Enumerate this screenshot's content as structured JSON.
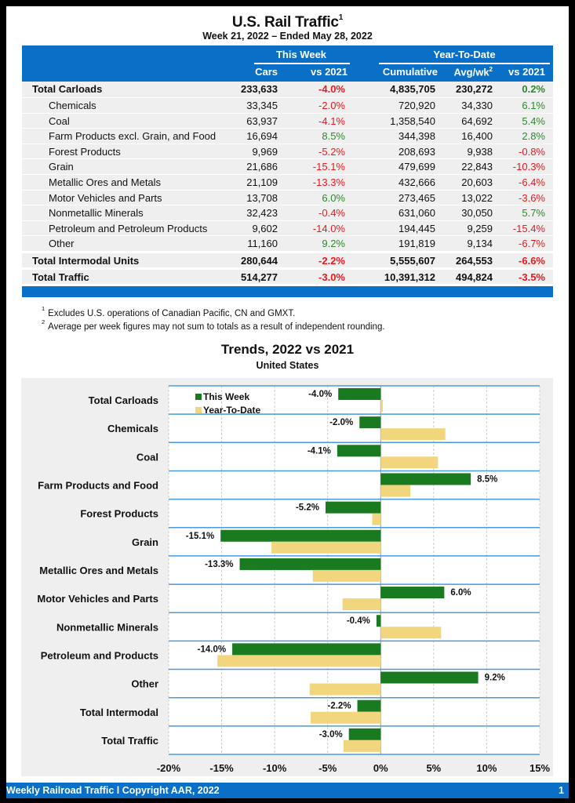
{
  "header": {
    "title": "U.S. Rail Traffic",
    "title_sup": "1",
    "subtitle": "Week 21, 2022 – Ended May 28, 2022"
  },
  "table": {
    "group_headers": [
      "This Week",
      "Year-To-Date"
    ],
    "columns": [
      "Cars",
      "vs 2021",
      "Cumulative",
      "Avg/wk",
      "vs 2021"
    ],
    "avg_sup": "2",
    "rows": [
      {
        "label": "Total Carloads",
        "type": "total",
        "cars": "233,633",
        "vs_week": "-4.0%",
        "cumulative": "4,835,705",
        "avg_wk": "230,272",
        "vs_ytd": "0.2%"
      },
      {
        "label": "Chemicals",
        "type": "sub",
        "cars": "33,345",
        "vs_week": "-2.0%",
        "cumulative": "720,920",
        "avg_wk": "34,330",
        "vs_ytd": "6.1%"
      },
      {
        "label": "Coal",
        "type": "sub",
        "cars": "63,937",
        "vs_week": "-4.1%",
        "cumulative": "1,358,540",
        "avg_wk": "64,692",
        "vs_ytd": "5.4%"
      },
      {
        "label": "Farm Products excl. Grain, and Food",
        "type": "sub",
        "cars": "16,694",
        "vs_week": "8.5%",
        "cumulative": "344,398",
        "avg_wk": "16,400",
        "vs_ytd": "2.8%"
      },
      {
        "label": "Forest Products",
        "type": "sub",
        "cars": "9,969",
        "vs_week": "-5.2%",
        "cumulative": "208,693",
        "avg_wk": "9,938",
        "vs_ytd": "-0.8%"
      },
      {
        "label": "Grain",
        "type": "sub",
        "cars": "21,686",
        "vs_week": "-15.1%",
        "cumulative": "479,699",
        "avg_wk": "22,843",
        "vs_ytd": "-10.3%"
      },
      {
        "label": "Metallic Ores and Metals",
        "type": "sub",
        "cars": "21,109",
        "vs_week": "-13.3%",
        "cumulative": "432,666",
        "avg_wk": "20,603",
        "vs_ytd": "-6.4%"
      },
      {
        "label": "Motor Vehicles and Parts",
        "type": "sub",
        "cars": "13,708",
        "vs_week": "6.0%",
        "cumulative": "273,465",
        "avg_wk": "13,022",
        "vs_ytd": "-3.6%"
      },
      {
        "label": "Nonmetallic Minerals",
        "type": "sub",
        "cars": "32,423",
        "vs_week": "-0.4%",
        "cumulative": "631,060",
        "avg_wk": "30,050",
        "vs_ytd": "5.7%"
      },
      {
        "label": "Petroleum and Petroleum Products",
        "type": "sub",
        "cars": "9,602",
        "vs_week": "-14.0%",
        "cumulative": "194,445",
        "avg_wk": "9,259",
        "vs_ytd": "-15.4%"
      },
      {
        "label": "Other",
        "type": "sub",
        "cars": "11,160",
        "vs_week": "9.2%",
        "cumulative": "191,819",
        "avg_wk": "9,134",
        "vs_ytd": "-6.7%"
      },
      {
        "label": "Total Intermodal Units",
        "type": "total",
        "cars": "280,644",
        "vs_week": "-2.2%",
        "cumulative": "5,555,607",
        "avg_wk": "264,553",
        "vs_ytd": "-6.6%"
      },
      {
        "label": "Total Traffic",
        "type": "total",
        "cars": "514,277",
        "vs_week": "-3.0%",
        "cumulative": "10,391,312",
        "avg_wk": "494,824",
        "vs_ytd": "-3.5%"
      }
    ]
  },
  "notes": [
    {
      "sup": "1",
      "text": "Excludes U.S. operations of Canadian Pacific, CN and GMXT."
    },
    {
      "sup": "2",
      "text": "Average per week figures may not sum to totals as a result of independent rounding."
    }
  ],
  "colors": {
    "brand_blue": "#0a6fc6",
    "negative": "#e8191f",
    "positive": "#2a8a2a",
    "this_week": "#1a7a1f",
    "ytd": "#f2d67e"
  },
  "chart_data": {
    "type": "bar",
    "orientation": "horizontal",
    "title": "Trends, 2022 vs 2021",
    "subtitle": "United States",
    "categories": [
      "Total Carloads",
      "Chemicals",
      "Coal",
      "Farm Products and Food",
      "Forest Products",
      "Grain",
      "Metallic Ores and Metals",
      "Motor Vehicles and Parts",
      "Nonmetallic Minerals",
      "Petroleum and Products",
      "Other",
      "Total Intermodal",
      "Total Traffic"
    ],
    "series": [
      {
        "name": "This Week",
        "values": [
          -4.0,
          -2.0,
          -4.1,
          8.5,
          -5.2,
          -15.1,
          -13.3,
          6.0,
          -0.4,
          -14.0,
          9.2,
          -2.2,
          -3.0
        ],
        "labels": [
          "-4.0%",
          "-2.0%",
          "-4.1%",
          "8.5%",
          "-5.2%",
          "-15.1%",
          "-13.3%",
          "6.0%",
          "-0.4%",
          "-14.0%",
          "9.2%",
          "-2.2%",
          "-3.0%"
        ]
      },
      {
        "name": "Year-To-Date",
        "values": [
          0.2,
          6.1,
          5.4,
          2.8,
          -0.8,
          -10.3,
          -6.4,
          -3.6,
          5.7,
          -15.4,
          -6.7,
          -6.6,
          -3.5
        ]
      }
    ],
    "xlim": [
      -20,
      15
    ],
    "xticks": [
      -20,
      -15,
      -10,
      -5,
      0,
      5,
      10,
      15
    ],
    "xtick_labels": [
      "-20%",
      "-15%",
      "-10%",
      "-5%",
      "0%",
      "5%",
      "10%",
      "15%"
    ],
    "grid": true,
    "legend": "top-left"
  },
  "footer": {
    "left": "Weekly Railroad Traffic l Copyright AAR, 2022",
    "page": "1"
  }
}
